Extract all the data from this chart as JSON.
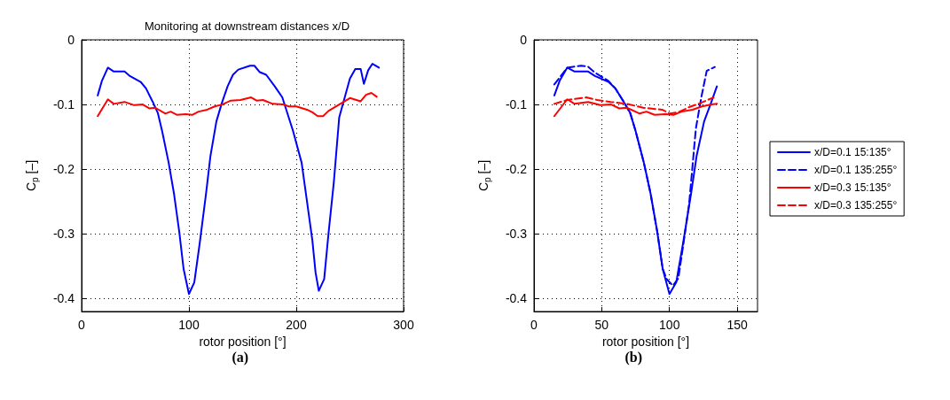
{
  "chart_data": [
    {
      "type": "line",
      "title": "Monitoring at downstream distances x/D",
      "xlabel": "rotor position [°]",
      "ylabel": "C$_{p}$ [–]",
      "annotations": [
        "(a)"
      ],
      "xlim": [
        0,
        300
      ],
      "xticks": [
        0,
        100,
        200,
        300
      ],
      "ylim": [
        -0.42,
        0
      ],
      "yticks": [
        0,
        -0.1,
        -0.2,
        -0.3,
        -0.4
      ],
      "grid": true,
      "legend": false,
      "series": [
        {
          "color": "#0000ff",
          "line_style": "solid",
          "x": [
            15,
            19,
            24.5,
            30,
            40,
            45,
            55,
            60,
            66,
            71,
            75,
            81,
            86,
            91,
            95,
            100,
            105,
            110,
            116,
            120,
            125.6,
            130.6,
            136,
            141,
            146,
            157,
            161,
            166,
            172,
            180,
            187,
            197,
            205,
            210,
            215,
            218,
            221,
            226,
            230,
            235,
            240,
            245,
            250,
            255,
            260,
            263,
            267,
            271,
            277
          ],
          "values": [
            -0.086,
            -0.063,
            -0.043,
            -0.049,
            -0.049,
            -0.056,
            -0.065,
            -0.075,
            -0.095,
            -0.113,
            -0.141,
            -0.189,
            -0.237,
            -0.297,
            -0.354,
            -0.393,
            -0.375,
            -0.315,
            -0.237,
            -0.18,
            -0.126,
            -0.098,
            -0.072,
            -0.054,
            -0.046,
            -0.04,
            -0.04,
            -0.05,
            -0.054,
            -0.072,
            -0.089,
            -0.141,
            -0.19,
            -0.25,
            -0.31,
            -0.36,
            -0.388,
            -0.37,
            -0.3,
            -0.22,
            -0.12,
            -0.09,
            -0.06,
            -0.045,
            -0.045,
            -0.068,
            -0.047,
            -0.037,
            -0.043
          ]
        },
        {
          "color": "#ff0000",
          "line_style": "solid",
          "x": [
            15,
            24.5,
            30,
            40,
            49,
            57,
            63,
            68.6,
            78,
            83,
            89,
            97,
            103,
            109,
            117,
            124,
            131,
            139,
            148,
            158,
            163,
            169,
            178,
            188,
            193,
            200,
            210,
            215,
            220,
            225,
            230,
            240,
            250,
            260,
            265,
            270,
            275
          ],
          "values": [
            -0.118,
            -0.092,
            -0.099,
            -0.096,
            -0.101,
            -0.1,
            -0.106,
            -0.105,
            -0.114,
            -0.111,
            -0.116,
            -0.115,
            -0.116,
            -0.111,
            -0.108,
            -0.103,
            -0.1,
            -0.094,
            -0.093,
            -0.089,
            -0.094,
            -0.093,
            -0.099,
            -0.1,
            -0.103,
            -0.103,
            -0.108,
            -0.112,
            -0.118,
            -0.118,
            -0.11,
            -0.1,
            -0.09,
            -0.095,
            -0.085,
            -0.082,
            -0.088
          ]
        }
      ]
    },
    {
      "type": "line",
      "xlabel": "rotor position [°]",
      "ylabel": "C$_{p}$ [–]",
      "annotations": [
        "(b)"
      ],
      "xlim": [
        0,
        165
      ],
      "xticks": [
        0,
        50,
        100,
        150
      ],
      "ylim": [
        -0.42,
        0
      ],
      "yticks": [
        0,
        -0.1,
        -0.2,
        -0.3,
        -0.4
      ],
      "grid": true,
      "legend": "right",
      "series": [
        {
          "name": "x/D=0.1 15:135°",
          "color": "#0000ff",
          "line_style": "solid",
          "x": [
            15,
            19,
            24.5,
            30,
            40,
            45,
            55,
            60,
            66,
            71,
            75,
            81,
            86,
            91,
            95,
            100,
            105,
            110,
            116,
            120,
            125.6,
            130.6,
            135
          ],
          "values": [
            -0.086,
            -0.063,
            -0.043,
            -0.049,
            -0.049,
            -0.056,
            -0.065,
            -0.075,
            -0.095,
            -0.113,
            -0.141,
            -0.189,
            -0.237,
            -0.297,
            -0.354,
            -0.393,
            -0.375,
            -0.315,
            -0.237,
            -0.18,
            -0.126,
            -0.098,
            -0.072
          ]
        },
        {
          "name": "x/D=0.1 135:255°",
          "color": "#0000ff",
          "line_style": "dashed",
          "x": [
            15,
            24.6,
            34.6,
            39.6,
            44.5,
            54.6,
            60,
            66,
            71,
            75,
            81,
            86,
            91,
            95,
            98,
            102.5,
            106.5,
            110,
            114.5,
            119.5,
            123.5,
            127.5,
            133.5
          ],
          "values": [
            -0.069,
            -0.043,
            -0.04,
            -0.041,
            -0.05,
            -0.063,
            -0.075,
            -0.095,
            -0.113,
            -0.141,
            -0.189,
            -0.237,
            -0.297,
            -0.354,
            -0.37,
            -0.38,
            -0.369,
            -0.32,
            -0.254,
            -0.137,
            -0.089,
            -0.048,
            -0.042
          ]
        },
        {
          "name": "x/D=0.3 15:135°",
          "color": "#ff0000",
          "line_style": "solid",
          "x": [
            15,
            24.5,
            30,
            40,
            49,
            57,
            63,
            68.6,
            78,
            83,
            89,
            97,
            103,
            109,
            117,
            124,
            131,
            135
          ],
          "values": [
            -0.118,
            -0.092,
            -0.099,
            -0.096,
            -0.101,
            -0.1,
            -0.106,
            -0.105,
            -0.114,
            -0.111,
            -0.116,
            -0.115,
            -0.116,
            -0.111,
            -0.108,
            -0.103,
            -0.1,
            -0.099
          ]
        },
        {
          "name": "x/D=0.3 135:255°",
          "color": "#ff0000",
          "line_style": "dashed",
          "x": [
            15,
            24.6,
            38.6,
            46.6,
            56.6,
            68.6,
            80.6,
            94.6,
            100.6,
            106.6,
            114.6,
            122.6,
            132.6
          ],
          "values": [
            -0.099,
            -0.093,
            -0.089,
            -0.093,
            -0.096,
            -0.099,
            -0.105,
            -0.108,
            -0.114,
            -0.112,
            -0.104,
            -0.098,
            -0.089
          ]
        }
      ]
    }
  ]
}
